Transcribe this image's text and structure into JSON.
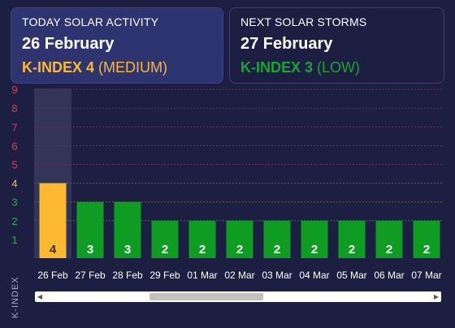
{
  "today_card": {
    "label": "TODAY SOLAR ACTIVITY",
    "date": "26 February",
    "kindex_prefix": "K-INDEX 4",
    "kindex_level": "(MEDIUM)",
    "color": "#fbb931"
  },
  "next_card": {
    "label": "NEXT SOLAR STORMS",
    "date": "27 February",
    "kindex_prefix": "K-INDEX 3",
    "kindex_level": "(LOW)",
    "color": "#19a532"
  },
  "chart_data": {
    "type": "bar",
    "ylabel": "K-INDEX",
    "ylim": [
      0,
      9
    ],
    "yticks": [
      1,
      2,
      3,
      4,
      5,
      6,
      7,
      8,
      9
    ],
    "categories": [
      "26 Feb",
      "27 Feb",
      "28 Feb",
      "29 Feb",
      "01 Mar",
      "02 Mar",
      "03 Mar",
      "04 Mar",
      "05 Mar",
      "06 Mar",
      "07 Mar"
    ],
    "values": [
      4,
      3,
      3,
      2,
      2,
      2,
      2,
      2,
      2,
      2,
      2
    ],
    "highlighted_category": "26 Feb",
    "grid": true,
    "colors": {
      "low": "#0f9c22",
      "medium": "#fbb931",
      "tick_low": "#22b54a",
      "tick_medium": "#f3c53b",
      "tick_high": "#e83b4d"
    }
  },
  "scrollbar": {
    "left_arrow": "◀",
    "right_arrow": "▶"
  }
}
